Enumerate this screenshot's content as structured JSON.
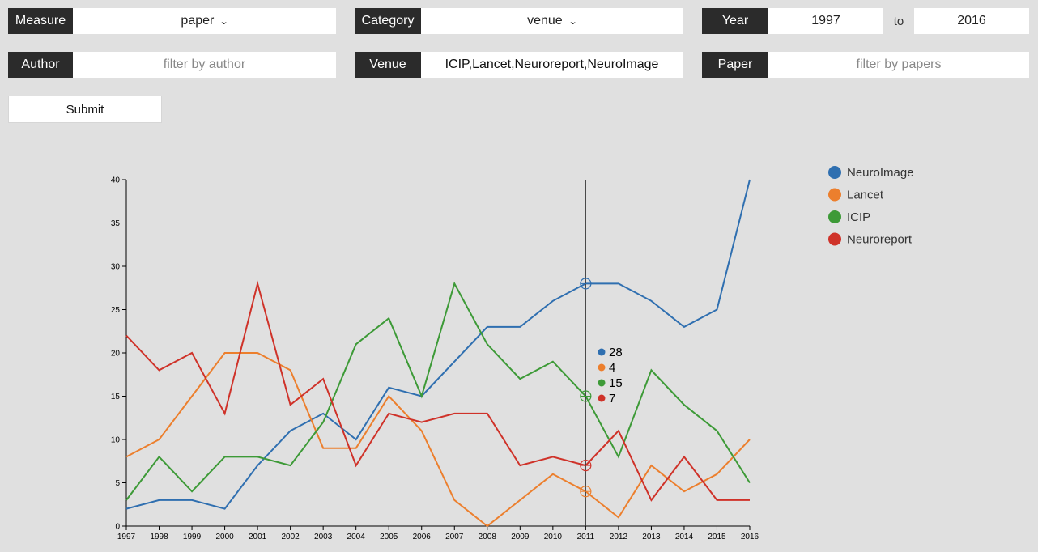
{
  "controls": {
    "measure": {
      "label": "Measure",
      "value": "paper"
    },
    "category": {
      "label": "Category",
      "value": "venue"
    },
    "year": {
      "label": "Year",
      "from": "1997",
      "to_label": "to",
      "to": "2016"
    },
    "author": {
      "label": "Author",
      "value": "",
      "placeholder": "filter by author"
    },
    "venue": {
      "label": "Venue",
      "value": "ICIP,Lancet,Neuroreport,NeuroImage"
    },
    "paper": {
      "label": "Paper",
      "value": "",
      "placeholder": "filter by papers"
    },
    "submit": "Submit",
    "dropdown_icon": "chevron-down-icon"
  },
  "chart_data": {
    "type": "line",
    "x": [
      1997,
      1998,
      1999,
      2000,
      2001,
      2002,
      2003,
      2004,
      2005,
      2006,
      2007,
      2008,
      2009,
      2010,
      2011,
      2012,
      2013,
      2014,
      2015,
      2016
    ],
    "ylim": [
      0,
      40
    ],
    "yticks": [
      0,
      5,
      10,
      15,
      20,
      25,
      30,
      35,
      40
    ],
    "grid": false,
    "legend_position": "top-right",
    "series": [
      {
        "name": "NeuroImage",
        "color": "#2f6fb0",
        "values": [
          2,
          3,
          3,
          2,
          7,
          11,
          13,
          10,
          16,
          15,
          19,
          23,
          23,
          26,
          28,
          28,
          26,
          23,
          25,
          40
        ]
      },
      {
        "name": "Lancet",
        "color": "#ec7f2d",
        "values": [
          8,
          10,
          15,
          20,
          20,
          18,
          9,
          9,
          15,
          11,
          3,
          0,
          3,
          6,
          4,
          1,
          7,
          4,
          6,
          10
        ]
      },
      {
        "name": "ICIP",
        "color": "#3d9a37",
        "values": [
          3,
          8,
          4,
          8,
          8,
          7,
          12,
          21,
          24,
          15,
          28,
          21,
          17,
          19,
          15,
          8,
          18,
          14,
          11,
          5
        ]
      },
      {
        "name": "Neuroreport",
        "color": "#cf3229",
        "values": [
          22,
          18,
          20,
          13,
          28,
          14,
          17,
          7,
          13,
          12,
          13,
          13,
          7,
          8,
          7,
          11,
          3,
          8,
          3,
          3
        ]
      }
    ],
    "hover": {
      "x": 2011,
      "values": [
        "28",
        "4",
        "15",
        "7"
      ]
    }
  }
}
